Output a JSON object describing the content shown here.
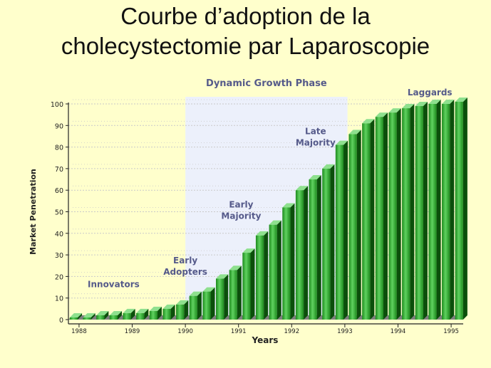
{
  "title": {
    "line1": "Courbe d’adoption de la",
    "line2": "cholecystectomie par Laparoscopie"
  },
  "chart_data": {
    "type": "bar",
    "title": "Courbe d’adoption de la cholecystectomie par Laparoscopie",
    "xlabel": "Years",
    "ylabel": "Market Penetration",
    "ylim": [
      0,
      100
    ],
    "yticks": [
      "0",
      "10",
      "20",
      "30",
      "40",
      "50",
      "60",
      "70",
      "80",
      "90",
      "100"
    ],
    "xlim": [
      1987.8,
      1995.2
    ],
    "xticks": [
      {
        "label": "1988",
        "value": 1988
      },
      {
        "label": "1989",
        "value": 1989
      },
      {
        "label": "1990",
        "value": 1990
      },
      {
        "label": "1991",
        "value": 1991
      },
      {
        "label": "1992",
        "value": 1992
      },
      {
        "label": "1993",
        "value": 1993
      },
      {
        "label": "1994",
        "value": 1994
      },
      {
        "label": "1995",
        "value": 1995
      }
    ],
    "x": [
      1987.9,
      1988.15,
      1988.4,
      1988.65,
      1988.9,
      1989.15,
      1989.4,
      1989.65,
      1989.9,
      1990.15,
      1990.4,
      1990.65,
      1990.9,
      1991.15,
      1991.4,
      1991.65,
      1991.9,
      1992.15,
      1992.4,
      1992.65,
      1992.9,
      1993.15,
      1993.4,
      1993.65,
      1993.9,
      1994.15,
      1994.4,
      1994.65,
      1994.9,
      1995.15
    ],
    "values": [
      1,
      1,
      2,
      2,
      3,
      3,
      4,
      5,
      7,
      11,
      13,
      19,
      23,
      31,
      39,
      44,
      52,
      60,
      65,
      70,
      81,
      86,
      91,
      94,
      96,
      98,
      99,
      100,
      100,
      101
    ],
    "phase_band": {
      "label": "Dynamic Growth Phase",
      "x_range": [
        1990,
        1993.05
      ]
    },
    "annotations": [
      {
        "lines": [
          "Innovators"
        ],
        "x": 1988.65,
        "y": 15
      },
      {
        "lines": [
          "Early",
          "Adopters"
        ],
        "x": 1990.0,
        "y": 26
      },
      {
        "lines": [
          "Early",
          "Majority"
        ],
        "x": 1991.05,
        "y": 52
      },
      {
        "lines": [
          "Late",
          "Majority"
        ],
        "x": 1992.45,
        "y": 86
      },
      {
        "lines": [
          "Laggards"
        ],
        "x": 1994.6,
        "y": 104
      }
    ],
    "colors": {
      "bar_front": "#1d8a1d",
      "bar_light": "#5fd25f",
      "bar_side": "#0b4f0b",
      "bar_top": "#8ee08e",
      "band": "#ecf0fb",
      "floor": "#7f7f7f",
      "grid": "#c9c9c9"
    }
  }
}
